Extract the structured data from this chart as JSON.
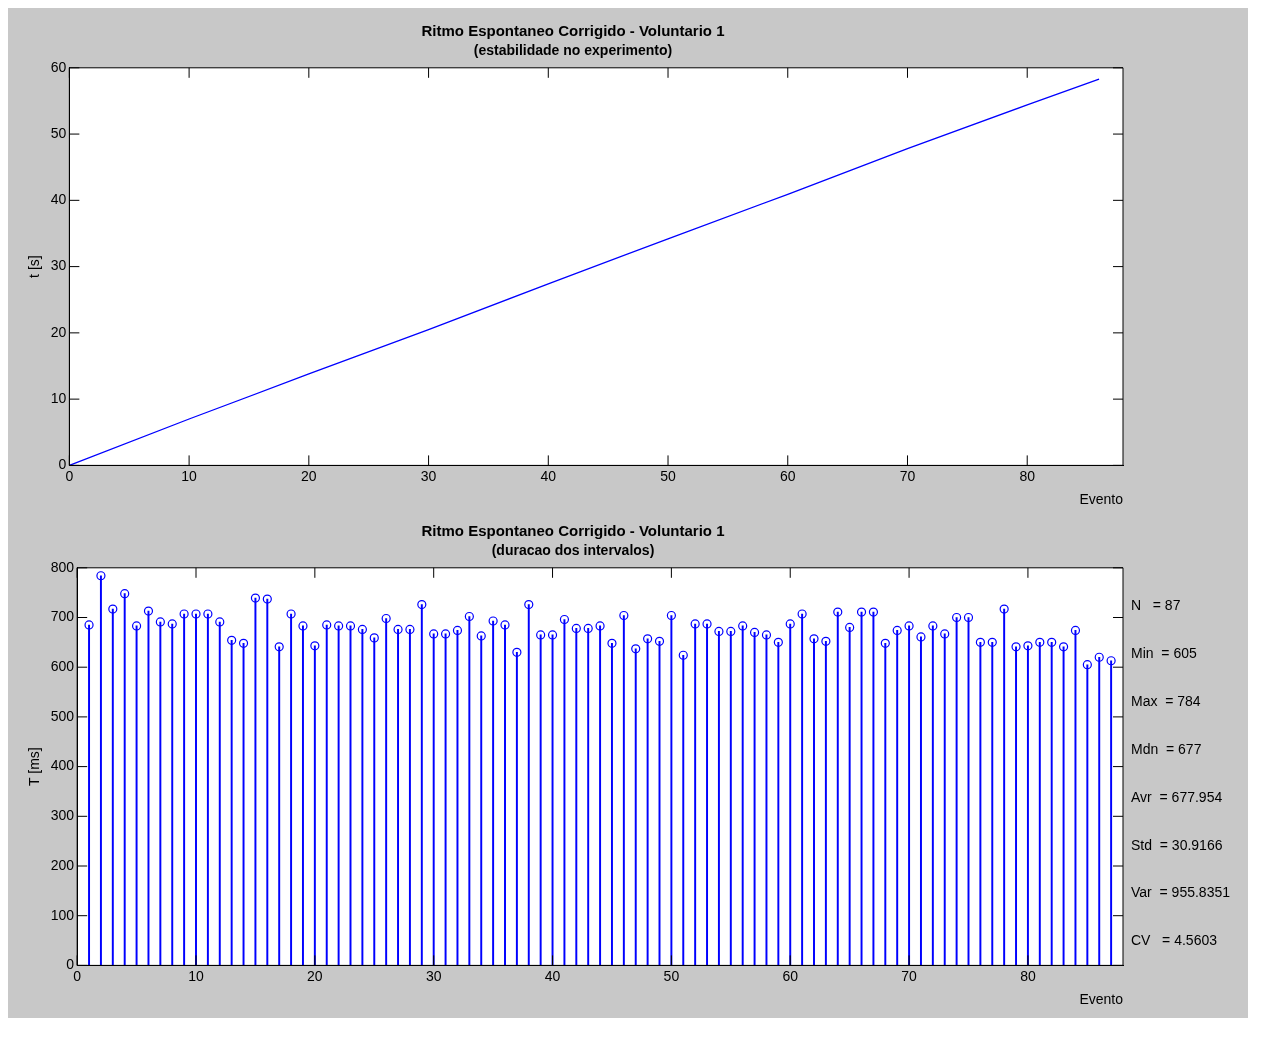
{
  "chart_data": [
    {
      "type": "line",
      "title": "Ritmo Espontaneo Corrigido - Voluntario 1",
      "subtitle": "(estabilidade no experimento)",
      "xlabel": "Evento",
      "ylabel": "t [s]",
      "series": [
        {
          "color": "#0000ff",
          "x": [
            0,
            10,
            20,
            30,
            40,
            50,
            60,
            70,
            80,
            86
          ],
          "values": [
            0,
            7,
            13.8,
            20.5,
            27.4,
            34.2,
            40.9,
            47.8,
            54.4,
            58.3
          ]
        }
      ],
      "xlim": [
        0,
        88
      ],
      "xticks": [
        0,
        10,
        20,
        30,
        40,
        50,
        60,
        70,
        80
      ],
      "ylim": [
        0,
        60
      ],
      "yticks": [
        0,
        10,
        20,
        30,
        40,
        50,
        60
      ],
      "legend": false,
      "marker": "none"
    },
    {
      "type": "lollipop",
      "title": "Ritmo Espontaneo Corrigido - Voluntario 1",
      "subtitle": "(duracao dos intervalos)",
      "xlabel": "Evento",
      "ylabel": "T [ms]",
      "series": [
        {
          "color": "#0000ff",
          "x": [
            1,
            2,
            3,
            4,
            5,
            6,
            7,
            8,
            9,
            10,
            11,
            12,
            13,
            14,
            15,
            16,
            17,
            18,
            19,
            20,
            21,
            22,
            23,
            24,
            25,
            26,
            27,
            28,
            29,
            30,
            31,
            32,
            33,
            34,
            35,
            36,
            37,
            38,
            39,
            40,
            41,
            42,
            43,
            44,
            45,
            46,
            47,
            48,
            49,
            50,
            51,
            52,
            53,
            54,
            55,
            56,
            57,
            58,
            59,
            60,
            61,
            62,
            63,
            64,
            65,
            66,
            67,
            68,
            69,
            70,
            71,
            72,
            73,
            74,
            75,
            76,
            77,
            78,
            79,
            80,
            81,
            82,
            83,
            84,
            85,
            86,
            87
          ],
          "values": [
            685,
            784,
            717,
            748,
            683,
            713,
            691,
            687,
            707,
            707,
            707,
            691,
            654,
            648,
            739,
            737,
            641,
            707,
            683,
            643,
            685,
            683,
            683,
            676,
            659,
            698,
            676,
            676,
            726,
            667,
            667,
            674,
            702,
            663,
            693,
            685,
            630,
            726,
            665,
            665,
            696,
            678,
            678,
            683,
            648,
            704,
            637,
            657,
            652,
            704,
            624,
            687,
            687,
            672,
            672,
            683,
            670,
            665,
            650,
            687,
            707,
            657,
            652,
            711,
            680,
            711,
            711,
            648,
            674,
            683,
            661,
            683,
            667,
            700,
            700,
            650,
            650,
            717,
            641,
            643,
            650,
            650,
            641,
            674,
            605,
            620,
            613
          ]
        }
      ],
      "xlim": [
        0,
        88
      ],
      "xticks": [
        0,
        10,
        20,
        30,
        40,
        50,
        60,
        70,
        80
      ],
      "ylim": [
        0,
        800
      ],
      "yticks": [
        0,
        100,
        200,
        300,
        400,
        500,
        600,
        700,
        800
      ],
      "legend": false,
      "marker": "circle",
      "annotations": [
        "N   = 87",
        "Min  = 605",
        "Max  = 784",
        "Mdn  = 677",
        "Avr  = 677.954",
        "Std  = 30.9166",
        "Var  = 955.8351",
        "CV   = 4.5603"
      ]
    }
  ]
}
